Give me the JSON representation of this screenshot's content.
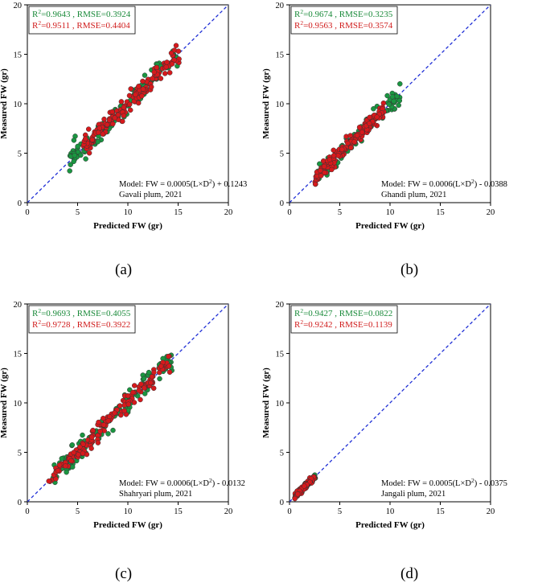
{
  "figure": {
    "caption_labels": [
      "(a)",
      "(b)",
      "(c)",
      "(d)"
    ]
  },
  "colors": {
    "series_green": "#1a9641",
    "series_red": "#d7191c",
    "identity_line": "#1f2fd6",
    "legend_green_text": "#1a8a3a",
    "legend_red_text": "#d01c1c"
  },
  "chart_data": [
    {
      "type": "scatter",
      "caption": "(a)",
      "xlabel": "Predicted FW (gr)",
      "ylabel": "Measured FW (gr)",
      "xlim": [
        0,
        20
      ],
      "ylim": [
        0,
        20
      ],
      "xticks": [
        "0",
        "5",
        "10",
        "15",
        "20"
      ],
      "yticks": [
        "0",
        "5",
        "10",
        "15",
        "20"
      ],
      "reference_line": "y = x (dashed)",
      "legend": [
        {
          "r2_label": "R",
          "r2_sup": "2",
          "text": "=0.9643 , RMSE=0.3924",
          "color": "green"
        },
        {
          "r2_label": "R",
          "r2_sup": "2",
          "text": "=0.9511 , RMSE=0.4404",
          "color": "red"
        }
      ],
      "model_text": "Model: FW = 0.0005(L×D",
      "model_sup": "2",
      "model_suffix": ") + 0.1243",
      "dataset_text": "Gavali plum, 2021",
      "series": [
        {
          "name": "green",
          "x_range": [
            4.0,
            15.0
          ],
          "spread": 0.55,
          "count": 120,
          "slope": 1.0,
          "seed": 11
        },
        {
          "name": "red",
          "x_range": [
            5.5,
            15.2
          ],
          "spread": 0.45,
          "count": 170,
          "slope": 1.0,
          "seed": 17
        }
      ]
    },
    {
      "type": "scatter",
      "caption": "(b)",
      "xlabel": "Predicted FW (gr)",
      "ylabel": "Measured FW (gr)",
      "xlim": [
        0,
        20
      ],
      "ylim": [
        0,
        20
      ],
      "xticks": [
        "0",
        "5",
        "10",
        "15",
        "20"
      ],
      "yticks": [
        "0",
        "5",
        "10",
        "15",
        "20"
      ],
      "reference_line": "y = x (dashed)",
      "legend": [
        {
          "r2_label": "R",
          "r2_sup": "2",
          "text": "=0.9674 , RMSE=0.3235",
          "color": "green"
        },
        {
          "r2_label": "R",
          "r2_sup": "2",
          "text": "=0.9563 , RMSE=0.3574",
          "color": "red"
        }
      ],
      "model_text": "Model: FW = 0.0006(L×D",
      "model_sup": "2",
      "model_suffix": ") - 0.0388",
      "dataset_text": "Ghandi plum, 2021",
      "series": [
        {
          "name": "green",
          "x_range": [
            2.5,
            11.0
          ],
          "spread": 0.45,
          "count": 110,
          "slope": 1.0,
          "seed": 23
        },
        {
          "name": "red",
          "x_range": [
            2.5,
            9.5
          ],
          "spread": 0.35,
          "count": 160,
          "slope": 1.0,
          "seed": 29
        }
      ]
    },
    {
      "type": "scatter",
      "caption": "(c)",
      "xlabel": "Predicted FW (gr)",
      "ylabel": "Measured FW (gr)",
      "xlim": [
        0,
        20
      ],
      "ylim": [
        0,
        20
      ],
      "xticks": [
        "0",
        "5",
        "10",
        "15",
        "20"
      ],
      "yticks": [
        "0",
        "5",
        "10",
        "15",
        "20"
      ],
      "reference_line": "y = x (dashed)",
      "legend": [
        {
          "r2_label": "R",
          "r2_sup": "2",
          "text": "=0.9693 , RMSE=0.4055",
          "color": "green"
        },
        {
          "r2_label": "R",
          "r2_sup": "2",
          "text": "=0.9728 , RMSE=0.3922",
          "color": "red"
        }
      ],
      "model_text": "Model: FW = 0.0006(L×D",
      "model_sup": "2",
      "model_suffix": ") - 0.0132",
      "dataset_text": "Shahryari plum, 2021",
      "series": [
        {
          "name": "green",
          "x_range": [
            2.5,
            14.5
          ],
          "spread": 0.6,
          "count": 120,
          "slope": 1.0,
          "seed": 31
        },
        {
          "name": "red",
          "x_range": [
            2.0,
            14.2
          ],
          "spread": 0.45,
          "count": 170,
          "slope": 1.0,
          "seed": 37
        }
      ]
    },
    {
      "type": "scatter",
      "caption": "(d)",
      "xlabel": "Predicted FW (gr)",
      "ylabel": "Measured FW (gr)",
      "xlim": [
        0,
        20
      ],
      "ylim": [
        0,
        20
      ],
      "xticks": [
        "0",
        "5",
        "10",
        "15",
        "20"
      ],
      "yticks": [
        "0",
        "5",
        "10",
        "15",
        "20"
      ],
      "reference_line": "y = x (dashed)",
      "legend": [
        {
          "r2_label": "R",
          "r2_sup": "2",
          "text": "=0.9427 , RMSE=0.0822",
          "color": "green"
        },
        {
          "r2_label": "R",
          "r2_sup": "2",
          "text": "=0.9242 , RMSE=0.1139",
          "color": "red"
        }
      ],
      "model_text": "Model: FW = 0.0005(L×D",
      "model_sup": "2",
      "model_suffix": ") - 0.0375",
      "dataset_text": "Jangali plum, 2021",
      "series": [
        {
          "name": "green",
          "x_range": [
            0.5,
            2.6
          ],
          "spread": 0.12,
          "count": 80,
          "slope": 1.0,
          "seed": 41
        },
        {
          "name": "red",
          "x_range": [
            0.5,
            2.5
          ],
          "spread": 0.15,
          "count": 120,
          "slope": 1.0,
          "seed": 43
        }
      ]
    }
  ]
}
